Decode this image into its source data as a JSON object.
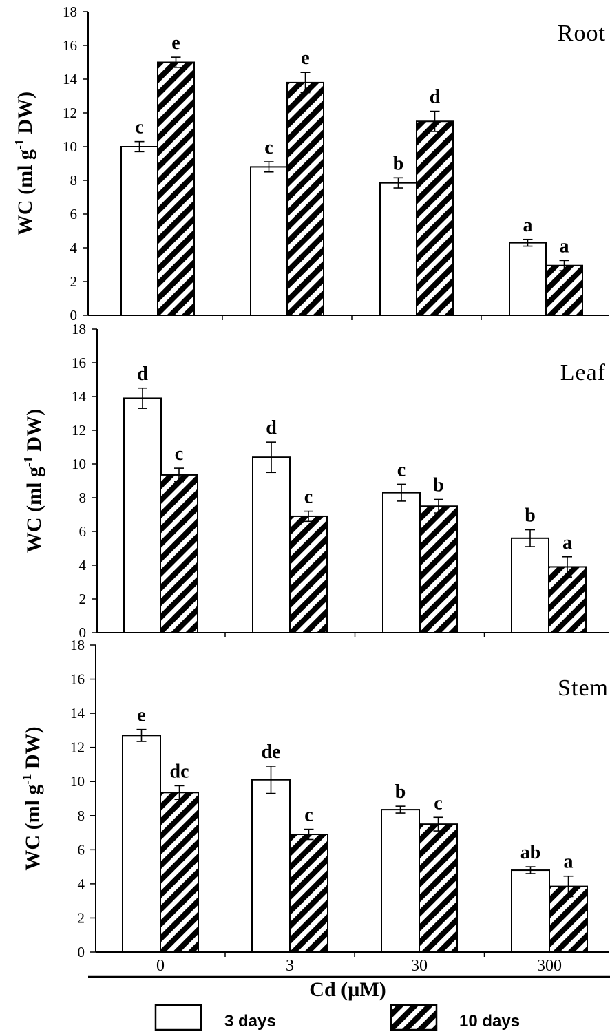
{
  "chart_data": {
    "type": "bar",
    "categories": [
      "0",
      "3",
      "30",
      "300"
    ],
    "xlabel": "Cd (µM)",
    "ylim": [
      0,
      18
    ],
    "yticks": [
      "0",
      "2",
      "4",
      "6",
      "8",
      "10",
      "12",
      "14",
      "16",
      "18"
    ],
    "legend": {
      "placement": "bottom",
      "entries": [
        {
          "label": "3 days",
          "style": "open"
        },
        {
          "label": "10 days",
          "style": "hatched"
        }
      ]
    },
    "panels": [
      {
        "name": "Root",
        "ylabel_main": "WC (ml g",
        "ylabel_sup": "-1",
        "ylabel_tail": " DW)",
        "series": [
          {
            "name": "3 days",
            "values": [
              10.0,
              8.8,
              7.85,
              4.3
            ],
            "errors": [
              0.3,
              0.3,
              0.3,
              0.2
            ],
            "letters": [
              "c",
              "c",
              "b",
              "a"
            ]
          },
          {
            "name": "10 days",
            "values": [
              15.0,
              13.8,
              11.5,
              2.95
            ],
            "errors": [
              0.3,
              0.6,
              0.6,
              0.3
            ],
            "letters": [
              "e",
              "e",
              "d",
              "a"
            ]
          }
        ]
      },
      {
        "name": "Leaf",
        "ylabel_main": "WC (ml g",
        "ylabel_sup": "-1",
        "ylabel_tail": " DW)",
        "series": [
          {
            "name": "3 days",
            "values": [
              13.9,
              10.4,
              8.3,
              5.6
            ],
            "errors": [
              0.6,
              0.9,
              0.5,
              0.5
            ],
            "letters": [
              "d",
              "d",
              "c",
              "b"
            ]
          },
          {
            "name": "10 days",
            "values": [
              9.35,
              6.9,
              7.5,
              3.9
            ],
            "errors": [
              0.4,
              0.3,
              0.4,
              0.6
            ],
            "letters": [
              "c",
              "c",
              "b",
              "a"
            ]
          }
        ]
      },
      {
        "name": "Stem",
        "ylabel_main": "WC (ml g",
        "ylabel_sup": "-1",
        "ylabel_tail": " DW)",
        "series": [
          {
            "name": "3 days",
            "values": [
              12.7,
              10.1,
              8.35,
              4.8
            ],
            "errors": [
              0.35,
              0.8,
              0.2,
              0.2
            ],
            "letters": [
              "e",
              "de",
              "b",
              "ab"
            ]
          },
          {
            "name": "10 days",
            "values": [
              9.35,
              6.9,
              7.5,
              3.85
            ],
            "errors": [
              0.4,
              0.3,
              0.4,
              0.6
            ],
            "letters": [
              "dc",
              "c",
              "c",
              "a"
            ]
          }
        ]
      }
    ]
  }
}
